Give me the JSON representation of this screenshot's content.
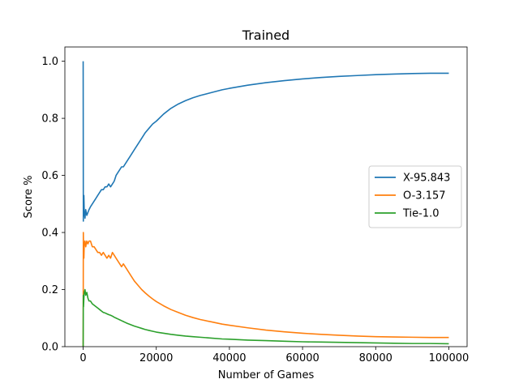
{
  "chart_data": {
    "type": "line",
    "title": "Trained",
    "xlabel": "Number of Games",
    "ylabel": "Score %",
    "xlim": [
      -5000,
      105000
    ],
    "ylim": [
      0.0,
      1.05
    ],
    "xticks": [
      0,
      20000,
      40000,
      60000,
      80000,
      100000
    ],
    "xtick_labels": [
      "0",
      "20000",
      "40000",
      "60000",
      "80000",
      "100000"
    ],
    "yticks": [
      0.0,
      0.2,
      0.4,
      0.6,
      0.8,
      1.0
    ],
    "ytick_labels": [
      "0.0",
      "0.2",
      "0.4",
      "0.6",
      "0.8",
      "1.0"
    ],
    "grid": false,
    "legend_position": "center-right",
    "series": [
      {
        "name": "X-95.843",
        "color": "#1f77b4",
        "x": [
          0,
          50,
          100,
          200,
          300,
          500,
          700,
          1000,
          1300,
          1600,
          2000,
          2500,
          3000,
          3500,
          4000,
          4500,
          5000,
          5500,
          6000,
          6500,
          7000,
          7500,
          8000,
          8500,
          9000,
          9500,
          10000,
          10500,
          11000,
          11500,
          12000,
          13000,
          14000,
          15000,
          16000,
          17000,
          18000,
          19000,
          20000,
          22000,
          24000,
          26000,
          28000,
          30000,
          32000,
          35000,
          38000,
          40000,
          45000,
          50000,
          55000,
          60000,
          65000,
          70000,
          75000,
          80000,
          85000,
          90000,
          95000,
          100000
        ],
        "y": [
          1.0,
          0.44,
          0.5,
          0.53,
          0.47,
          0.45,
          0.48,
          0.46,
          0.47,
          0.48,
          0.49,
          0.5,
          0.51,
          0.52,
          0.53,
          0.54,
          0.55,
          0.55,
          0.56,
          0.56,
          0.57,
          0.56,
          0.57,
          0.58,
          0.6,
          0.61,
          0.62,
          0.63,
          0.63,
          0.64,
          0.65,
          0.67,
          0.69,
          0.71,
          0.73,
          0.75,
          0.765,
          0.78,
          0.79,
          0.815,
          0.835,
          0.85,
          0.862,
          0.872,
          0.88,
          0.89,
          0.9,
          0.905,
          0.916,
          0.925,
          0.932,
          0.938,
          0.943,
          0.947,
          0.95,
          0.953,
          0.955,
          0.957,
          0.958,
          0.958
        ]
      },
      {
        "name": "O-3.157",
        "color": "#ff7f0e",
        "x": [
          0,
          50,
          100,
          200,
          300,
          500,
          700,
          1000,
          1300,
          1600,
          2000,
          2500,
          3000,
          3500,
          4000,
          4500,
          5000,
          5500,
          6000,
          6500,
          7000,
          7500,
          8000,
          8500,
          9000,
          9500,
          10000,
          10500,
          11000,
          11500,
          12000,
          13000,
          14000,
          15000,
          16000,
          17000,
          18000,
          19000,
          20000,
          22000,
          24000,
          26000,
          28000,
          30000,
          32000,
          35000,
          38000,
          40000,
          45000,
          50000,
          55000,
          60000,
          65000,
          70000,
          75000,
          80000,
          85000,
          90000,
          95000,
          100000
        ],
        "y": [
          0.0,
          0.4,
          0.35,
          0.31,
          0.36,
          0.37,
          0.35,
          0.37,
          0.36,
          0.37,
          0.37,
          0.35,
          0.35,
          0.34,
          0.33,
          0.33,
          0.32,
          0.33,
          0.32,
          0.31,
          0.32,
          0.31,
          0.33,
          0.32,
          0.31,
          0.3,
          0.29,
          0.28,
          0.29,
          0.28,
          0.27,
          0.25,
          0.23,
          0.215,
          0.2,
          0.188,
          0.177,
          0.167,
          0.158,
          0.143,
          0.13,
          0.12,
          0.11,
          0.102,
          0.095,
          0.087,
          0.079,
          0.075,
          0.066,
          0.058,
          0.052,
          0.047,
          0.043,
          0.04,
          0.037,
          0.035,
          0.034,
          0.033,
          0.032,
          0.032
        ]
      },
      {
        "name": "Tie-1.0",
        "color": "#2ca02c",
        "x": [
          0,
          50,
          100,
          200,
          300,
          500,
          700,
          1000,
          1300,
          1600,
          2000,
          2500,
          3000,
          3500,
          4000,
          4500,
          5000,
          5500,
          6000,
          6500,
          7000,
          7500,
          8000,
          8500,
          9000,
          9500,
          10000,
          10500,
          11000,
          11500,
          12000,
          13000,
          14000,
          15000,
          16000,
          17000,
          18000,
          19000,
          20000,
          22000,
          24000,
          26000,
          28000,
          30000,
          32000,
          35000,
          38000,
          40000,
          45000,
          50000,
          55000,
          60000,
          65000,
          70000,
          75000,
          80000,
          85000,
          90000,
          95000,
          100000
        ],
        "y": [
          0.0,
          0.18,
          0.14,
          0.17,
          0.19,
          0.2,
          0.18,
          0.19,
          0.17,
          0.16,
          0.16,
          0.15,
          0.145,
          0.14,
          0.135,
          0.13,
          0.125,
          0.12,
          0.118,
          0.115,
          0.112,
          0.11,
          0.107,
          0.103,
          0.1,
          0.097,
          0.094,
          0.091,
          0.088,
          0.085,
          0.082,
          0.077,
          0.072,
          0.068,
          0.064,
          0.06,
          0.057,
          0.054,
          0.051,
          0.047,
          0.043,
          0.04,
          0.037,
          0.035,
          0.033,
          0.03,
          0.027,
          0.026,
          0.023,
          0.021,
          0.019,
          0.017,
          0.016,
          0.015,
          0.014,
          0.013,
          0.012,
          0.011,
          0.011,
          0.01
        ]
      }
    ]
  }
}
